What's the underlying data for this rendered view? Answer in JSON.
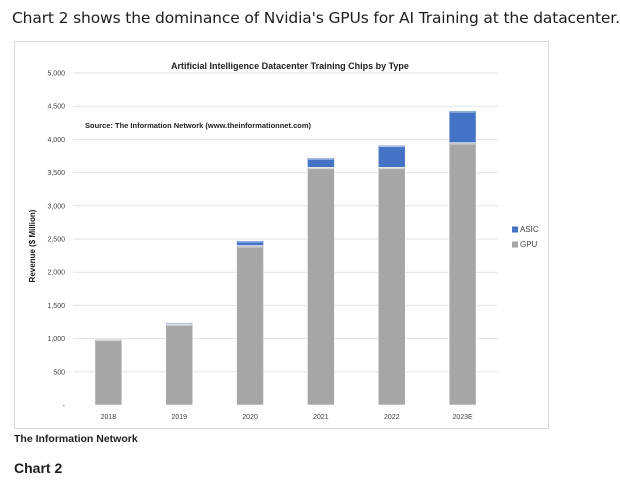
{
  "page": {
    "headline": "Chart 2 shows the dominance of Nvidia's GPUs for AI Training at the datacenter.",
    "source_caption": "The Information Network",
    "chart_label": "Chart 2"
  },
  "colors": {
    "gpu": "#a6a6a6",
    "asic": "#4472c4",
    "gridline": "#e3e3e3",
    "axis_text": "#404040"
  },
  "chart_data": {
    "type": "bar",
    "stacked": true,
    "title": "Artificial Intelligence Datacenter Training Chips by Type",
    "annotation": "Source: The Information Network (www.theinformationnet.com)",
    "xlabel": "",
    "ylabel": "Revenue ($ Million)",
    "ylim": [
      0,
      5000
    ],
    "yticks": [
      {
        "value": 0,
        "label": "-"
      },
      {
        "value": 500,
        "label": "500"
      },
      {
        "value": 1000,
        "label": "1,000"
      },
      {
        "value": 1500,
        "label": "1,500"
      },
      {
        "value": 2000,
        "label": "2,000"
      },
      {
        "value": 2500,
        "label": "2,500"
      },
      {
        "value": 3000,
        "label": "3,000"
      },
      {
        "value": 3500,
        "label": "3,500"
      },
      {
        "value": 4000,
        "label": "4,000"
      },
      {
        "value": 4500,
        "label": "4,500"
      },
      {
        "value": 5000,
        "label": "5,000"
      }
    ],
    "grid": true,
    "legend_position": "right",
    "categories": [
      "2018",
      "2019",
      "2020",
      "2021",
      "2022",
      "2023E"
    ],
    "series": [
      {
        "name": "GPU",
        "color": "#a6a6a6",
        "values": [
          990,
          1220,
          2400,
          3580,
          3580,
          3950
        ]
      },
      {
        "name": "ASIC",
        "color": "#4472c4",
        "values": [
          0,
          20,
          75,
          140,
          330,
          480
        ]
      }
    ],
    "legend_order": [
      "ASIC",
      "GPU"
    ]
  }
}
